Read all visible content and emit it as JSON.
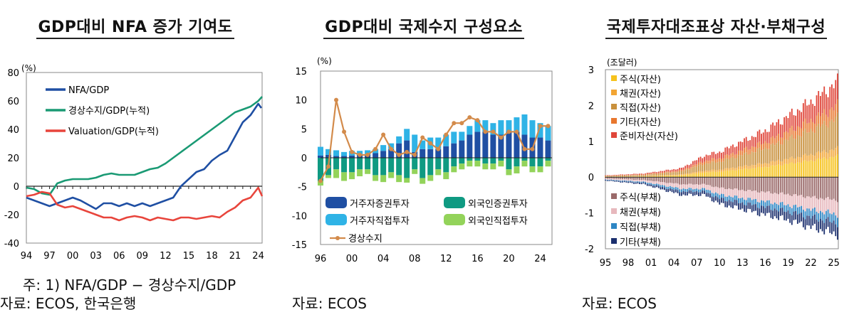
{
  "panels": [
    {
      "title": "GDP대비 NFA 증가 기여도",
      "notes": [
        "주: 1) NFA/GDP − 경상수지/GDP",
        "자료: ECOS, 한국은행"
      ]
    },
    {
      "title": "GDP대비 국제수지 구성요소",
      "notes": [
        "자료: ECOS"
      ]
    },
    {
      "title": "국제투자대조표상 자산·부채구성",
      "notes": [
        "자료: ECOS"
      ]
    }
  ],
  "chart_data": [
    {
      "type": "line",
      "unit": "(%)",
      "ylim": [
        -40,
        80
      ],
      "yticks": [
        80,
        60,
        40,
        20,
        0,
        -20,
        -40
      ],
      "xlim": [
        1994,
        2024.5
      ],
      "xticks": [
        "94",
        "97",
        "00",
        "03",
        "06",
        "09",
        "12",
        "15",
        "18",
        "21",
        "24"
      ],
      "legend": "top-left",
      "series": [
        {
          "name": "NFA/GDP",
          "color": "#1f4fa3",
          "x": [
            1994,
            1995,
            1996,
            1997,
            1998,
            1999,
            2000,
            2001,
            2002,
            2003,
            2004,
            2005,
            2006,
            2007,
            2008,
            2009,
            2010,
            2011,
            2012,
            2013,
            2014,
            2015,
            2016,
            2017,
            2018,
            2019,
            2020,
            2021,
            2022,
            2023,
            2024,
            2024.4
          ],
          "values": [
            -8,
            -10,
            -12,
            -14,
            -12,
            -10,
            -8,
            -10,
            -13,
            -16,
            -12,
            -12,
            -14,
            -12,
            -14,
            -12,
            -14,
            -12,
            -10,
            -8,
            0,
            5,
            10,
            12,
            18,
            22,
            25,
            35,
            45,
            50,
            58,
            55
          ]
        },
        {
          "name": "경상수지/GDP(누적)",
          "color": "#1a9a74",
          "x": [
            1994,
            1995,
            1996,
            1997,
            1998,
            1999,
            2000,
            2001,
            2002,
            2003,
            2004,
            2005,
            2006,
            2007,
            2008,
            2009,
            2010,
            2011,
            2012,
            2013,
            2014,
            2015,
            2016,
            2017,
            2018,
            2019,
            2020,
            2021,
            2022,
            2023,
            2024,
            2024.5
          ],
          "values": [
            -1,
            -2,
            -5,
            -6,
            2,
            4,
            5,
            5,
            5,
            6,
            8,
            9,
            8,
            8,
            8,
            10,
            12,
            13,
            16,
            20,
            24,
            28,
            32,
            36,
            40,
            44,
            48,
            52,
            54,
            56,
            60,
            63
          ]
        },
        {
          "name": "Valuation/GDP(누적)",
          "color": "#e8453c",
          "x": [
            1994,
            1995,
            1996,
            1997,
            1998,
            1999,
            2000,
            2001,
            2002,
            2003,
            2004,
            2005,
            2006,
            2007,
            2008,
            2009,
            2010,
            2011,
            2012,
            2013,
            2014,
            2015,
            2016,
            2017,
            2018,
            2019,
            2020,
            2021,
            2022,
            2023,
            2024,
            2024.5
          ],
          "values": [
            -7,
            -6,
            -4,
            -5,
            -13,
            -15,
            -14,
            -16,
            -18,
            -20,
            -22,
            -22,
            -24,
            -22,
            -21,
            -22,
            -24,
            -22,
            -23,
            -24,
            -22,
            -22,
            -23,
            -22,
            -21,
            -22,
            -18,
            -15,
            -10,
            -8,
            -1,
            -7
          ]
        }
      ]
    },
    {
      "type": "bar",
      "unit": "(%)",
      "ylim": [
        -15,
        15
      ],
      "yticks": [
        15,
        10,
        5,
        0,
        -5,
        -10,
        -15
      ],
      "xlim": [
        1996,
        2025.5
      ],
      "xticks": [
        "96",
        "00",
        "04",
        "08",
        "12",
        "16",
        "20",
        "24"
      ],
      "legend": "bottom",
      "x": [
        1996,
        1997,
        1998,
        1999,
        2000,
        2001,
        2002,
        2003,
        2004,
        2005,
        2006,
        2007,
        2008,
        2009,
        2010,
        2011,
        2012,
        2013,
        2014,
        2015,
        2016,
        2017,
        2018,
        2019,
        2020,
        2021,
        2022,
        2023,
        2024,
        2025
      ],
      "series": [
        {
          "name": "거주자증권투자",
          "color": "#1f4fa3",
          "kind": "bar",
          "values": [
            0.4,
            0.5,
            0.3,
            0.3,
            0.4,
            0.5,
            0.6,
            0.8,
            1.2,
            1.5,
            2.5,
            3.0,
            1.0,
            1.5,
            1.5,
            1.5,
            2.0,
            2.5,
            3.0,
            4.0,
            4.5,
            4.5,
            4.0,
            4.0,
            4.5,
            4.5,
            4.0,
            3.5,
            3.5,
            3.0
          ]
        },
        {
          "name": "외국인증권투자",
          "color": "#0f9a82",
          "kind": "bar",
          "values": [
            -4.0,
            -3.0,
            -2.0,
            -2.5,
            -2.5,
            -2.0,
            -2.0,
            -3.0,
            -3.0,
            -2.5,
            -3.0,
            -3.5,
            -2.0,
            -3.5,
            -3.0,
            -2.0,
            -2.5,
            -1.5,
            -1.0,
            -0.5,
            -0.5,
            -1.0,
            -1.0,
            -0.5,
            -2.0,
            -1.5,
            -0.5,
            -1.5,
            -1.5,
            -0.5
          ]
        },
        {
          "name": "거주자직접투자",
          "color": "#2fb3e6",
          "kind": "bar",
          "values": [
            1.5,
            1.0,
            1.0,
            0.7,
            0.8,
            0.7,
            0.7,
            0.7,
            1.0,
            1.0,
            1.2,
            2.0,
            3.0,
            1.5,
            2.0,
            2.0,
            2.0,
            2.0,
            1.5,
            1.5,
            2.0,
            2.0,
            2.0,
            2.5,
            2.0,
            2.5,
            3.5,
            3.0,
            2.5,
            2.5
          ]
        },
        {
          "name": "외국인직접투자",
          "color": "#93d35a",
          "kind": "bar",
          "values": [
            -0.8,
            -0.5,
            -1.5,
            -1.5,
            -1.2,
            -1.2,
            -0.8,
            -1.0,
            -1.2,
            -1.0,
            -1.2,
            -0.8,
            -0.8,
            -1.0,
            -1.0,
            -1.0,
            -1.2,
            -1.0,
            -1.0,
            -1.0,
            -1.0,
            -1.0,
            -1.0,
            -1.0,
            -1.0,
            -1.2,
            -1.0,
            -1.0,
            -1.0,
            -1.0
          ]
        },
        {
          "name": "경상수지",
          "color": "#d38b4b",
          "kind": "line",
          "values": [
            -4.0,
            -1.5,
            10.0,
            4.5,
            1.0,
            0.5,
            0.5,
            1.5,
            4.0,
            1.5,
            0.5,
            1.0,
            0.5,
            3.5,
            2.5,
            1.5,
            4.0,
            6.0,
            6.0,
            7.0,
            6.5,
            4.5,
            4.5,
            3.5,
            4.5,
            4.5,
            1.5,
            1.5,
            5.5,
            5.5
          ]
        }
      ]
    },
    {
      "type": "bar",
      "unit": "(조달러)",
      "ylim": [
        -2,
        3
      ],
      "yticks": [
        3,
        2,
        1,
        0,
        -1,
        -2
      ],
      "xlim": [
        1995,
        2025.6
      ],
      "xticks": [
        "95",
        "98",
        "01",
        "04",
        "07",
        "10",
        "13",
        "16",
        "19",
        "22",
        "25"
      ],
      "legend": "left",
      "assets_total_x": [
        1995,
        2000,
        2005,
        2008,
        2010,
        2013,
        2016,
        2019,
        2022,
        2025.5
      ],
      "assets_total": [
        0.05,
        0.1,
        0.25,
        0.6,
        0.7,
        1.0,
        1.3,
        1.7,
        2.1,
        2.65
      ],
      "liabilities_total_x": [
        1995,
        2000,
        2005,
        2008,
        2010,
        2013,
        2016,
        2019,
        2022,
        2025.5
      ],
      "liabilities_total": [
        -0.1,
        -0.2,
        -0.5,
        -0.5,
        -0.75,
        -0.9,
        -1.05,
        -1.2,
        -1.4,
        -1.6
      ],
      "asset_series": [
        {
          "name": "주식(자산)",
          "color": "#f6c21c"
        },
        {
          "name": "채권(자산)",
          "color": "#f2a534"
        },
        {
          "name": "직접(자산)",
          "color": "#c9913d"
        },
        {
          "name": "기타(자산)",
          "color": "#e8772e"
        },
        {
          "name": "준비자산(자산)",
          "color": "#e0463a"
        }
      ],
      "asset_shares": [
        0.22,
        0.08,
        0.32,
        0.13,
        0.25
      ],
      "liability_series": [
        {
          "name": "주식(부채)",
          "color": "#9a6a6a"
        },
        {
          "name": "채권(부채)",
          "color": "#e7b8bd"
        },
        {
          "name": "직접(부채)",
          "color": "#2d86c4"
        },
        {
          "name": "기타(부채)",
          "color": "#1b2f6e"
        }
      ],
      "liability_shares": [
        0.4,
        0.25,
        0.15,
        0.2
      ]
    }
  ]
}
